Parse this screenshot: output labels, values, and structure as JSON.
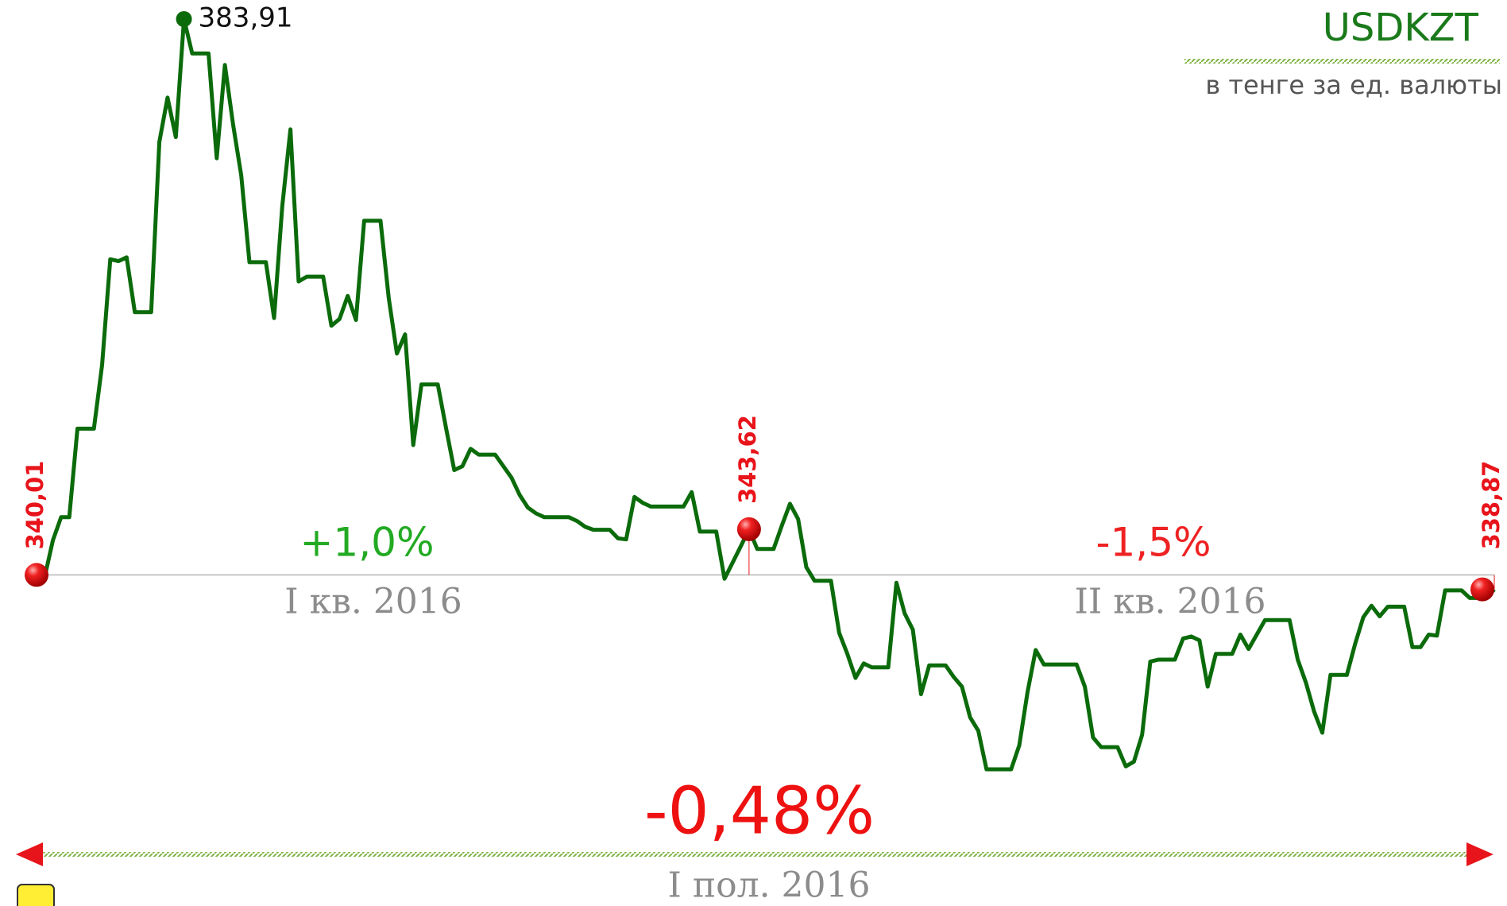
{
  "chart_data": {
    "type": "line",
    "title": "USDKZT",
    "subtitle": "в тенге за ед. валюты",
    "color": "#0b6b0b",
    "marker_color": "#e8141b",
    "baseline_color": "#c8c8c8",
    "annotations": [
      {
        "text": "+1,0%"
      },
      {
        "text": "I кв. 2016"
      },
      {
        "text": "-1,5%"
      },
      {
        "text": "II кв. 2016"
      },
      {
        "text": "-0,48%"
      },
      {
        "text": "I пол. 2016"
      }
    ],
    "values": [
      340.01,
      339.86,
      342.75,
      344.57,
      344.57,
      351.56,
      351.56,
      351.56,
      356.58,
      364.94,
      364.79,
      365.09,
      360.76,
      360.76,
      360.76,
      374.21,
      377.71,
      374.59,
      383.91,
      381.2,
      381.2,
      381.2,
      372.92,
      380.29,
      375.58,
      371.55,
      364.71,
      364.71,
      364.71,
      360.3,
      369.12,
      375.2,
      363.19,
      363.57,
      363.57,
      363.57,
      359.69,
      360.23,
      362.05,
      360.15,
      367.98,
      367.98,
      367.98,
      361.9,
      357.49,
      359.01,
      350.27,
      355.06,
      355.06,
      355.06,
      351.64,
      348.29,
      348.6,
      349.97,
      349.51,
      349.51,
      349.51,
      348.6,
      347.69,
      346.32,
      345.33,
      344.87,
      344.57,
      344.57,
      344.57,
      344.57,
      344.27,
      343.81,
      343.58,
      343.58,
      343.58,
      342.9,
      342.82,
      346.17,
      345.71,
      345.41,
      345.41,
      345.41,
      345.41,
      345.41,
      346.55,
      343.43,
      343.43,
      343.43,
      339.71,
      341.0,
      342.29,
      343.62,
      342.06,
      342.06,
      342.06,
      343.89,
      345.63,
      344.42,
      340.62,
      339.55,
      339.55,
      339.55,
      335.45,
      333.78,
      331.88,
      333.02,
      332.71,
      332.71,
      332.71,
      339.4,
      336.97,
      335.68,
      330.59,
      332.87,
      332.87,
      332.87,
      331.95,
      331.19,
      328.76,
      327.7,
      324.66,
      324.66,
      324.66,
      324.66,
      326.56,
      330.74,
      334.08,
      332.94,
      332.94,
      332.94,
      332.94,
      332.94,
      331.19,
      327.17,
      326.41,
      326.41,
      326.41,
      324.89,
      325.27,
      327.39,
      333.17,
      333.32,
      333.32,
      333.32,
      334.99,
      335.15,
      334.84,
      331.19,
      333.78,
      333.78,
      333.78,
      335.3,
      334.16,
      335.3,
      336.44,
      336.44,
      336.44,
      336.44,
      333.32,
      331.5,
      329.22,
      327.55,
      332.11,
      332.11,
      332.11,
      334.54,
      336.67,
      337.58,
      336.74,
      337.5,
      337.5,
      337.5,
      334.31,
      334.31,
      335.3,
      335.22,
      338.79,
      338.79,
      338.79,
      338.19,
      338.19,
      338.19,
      338.87
    ],
    "value_labels": [
      "340,01",
      null,
      null,
      null,
      null,
      null,
      null,
      null,
      null,
      null,
      null,
      null,
      null,
      null,
      null,
      null,
      null,
      null,
      "383,91",
      null,
      null,
      null,
      null,
      null,
      null,
      null,
      null,
      null,
      null,
      null,
      null,
      null,
      null,
      null,
      null,
      null,
      null,
      null,
      null,
      null,
      null,
      null,
      null,
      null,
      null,
      null,
      null,
      null,
      null,
      null,
      null,
      null,
      null,
      null,
      null,
      null,
      null,
      null,
      null,
      null,
      null,
      null,
      null,
      null,
      null,
      null,
      null,
      null,
      null,
      null,
      null,
      null,
      null,
      null,
      null,
      null,
      null,
      null,
      null,
      null,
      null,
      null,
      null,
      null,
      null,
      null,
      null,
      "343,62",
      null,
      null,
      null,
      null,
      null,
      null,
      null,
      null,
      null,
      null,
      null,
      null,
      null,
      null,
      null,
      null,
      null,
      null,
      null,
      null,
      null,
      null,
      null,
      null,
      null,
      null,
      null,
      null,
      null,
      null,
      null,
      null,
      null,
      null,
      null,
      null,
      null,
      null,
      null,
      null,
      null,
      null,
      null,
      null,
      null,
      null,
      null,
      null,
      null,
      null,
      null,
      null,
      null,
      null,
      null,
      null,
      null,
      null,
      null,
      null,
      null,
      null,
      null,
      null,
      null,
      null,
      null,
      null,
      null,
      null,
      null,
      null,
      null,
      null,
      null,
      null,
      null,
      null,
      null,
      null,
      null,
      null,
      null,
      null,
      null,
      null,
      null,
      null,
      null,
      null,
      "338,87"
    ]
  }
}
